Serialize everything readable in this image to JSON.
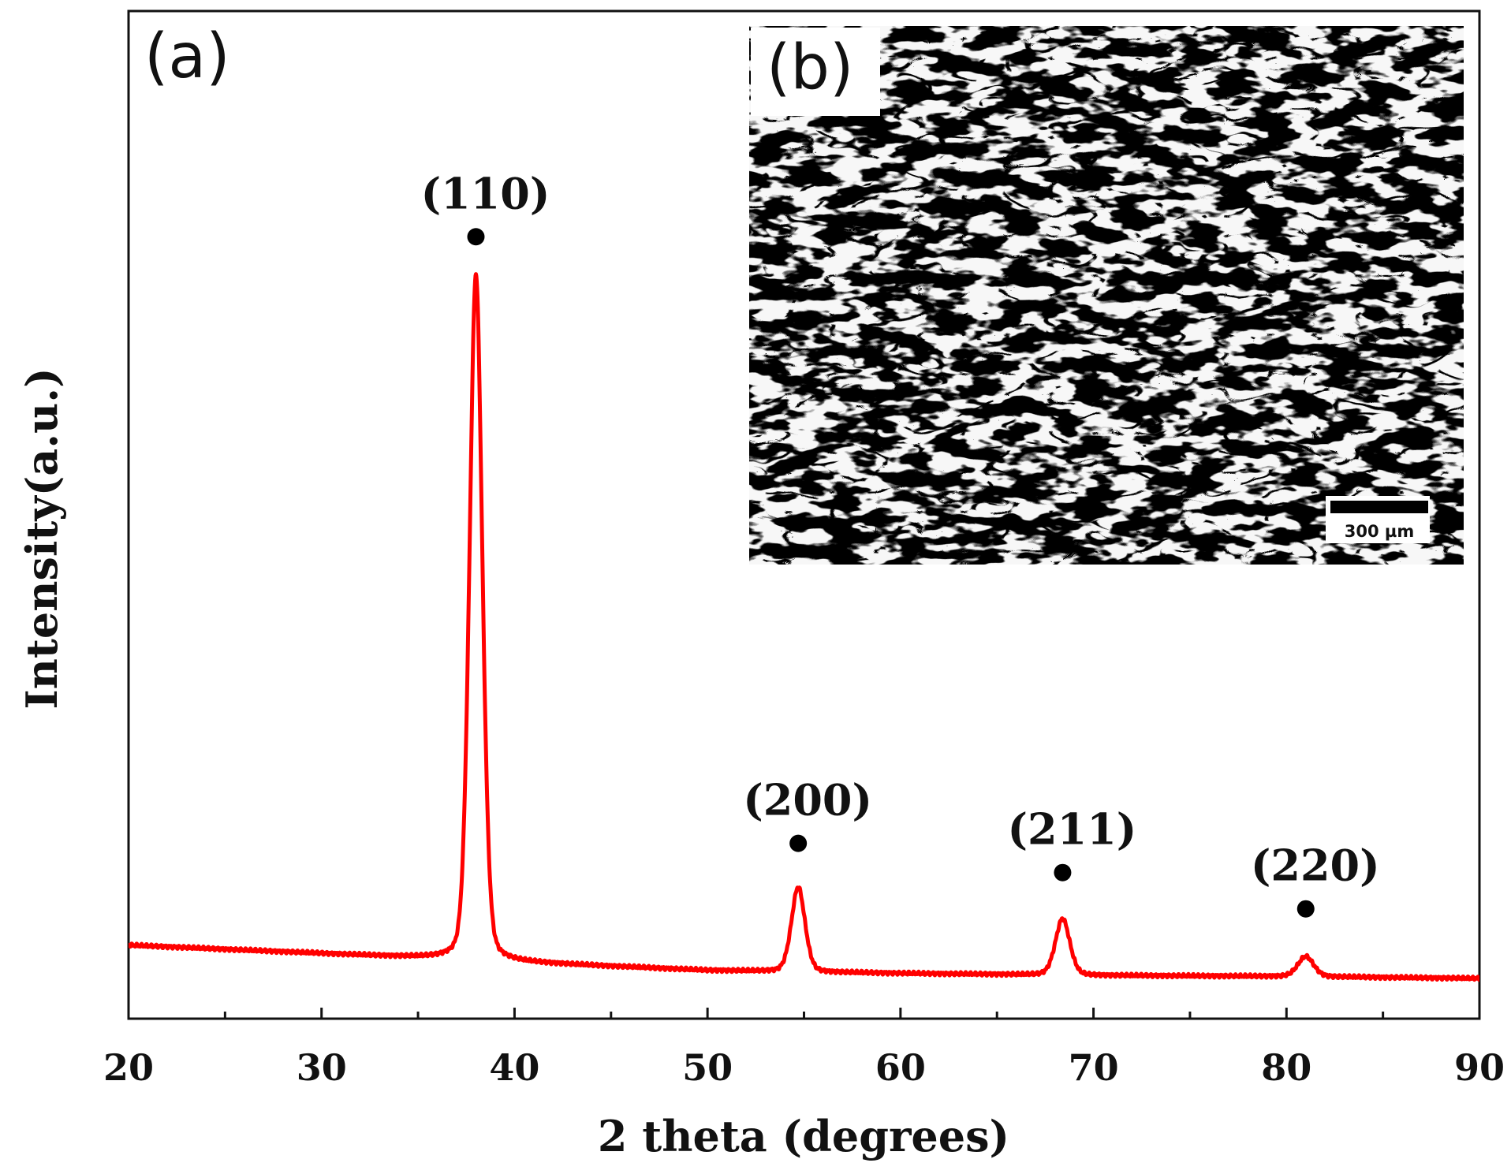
{
  "chart_data": {
    "type": "line",
    "title": "",
    "xlabel": "2 theta (degrees)",
    "ylabel": "Intensity(a.u.)",
    "xlim": [
      20,
      90
    ],
    "ylim": [
      0,
      100
    ],
    "x_ticks": [
      20,
      30,
      40,
      50,
      60,
      70,
      80,
      90
    ],
    "x_tick_labels": [
      "20",
      "30",
      "40",
      "50",
      "60",
      "70",
      "80",
      "90"
    ],
    "y_ticks_shown": false,
    "grid": false,
    "legend": "none",
    "series": [
      {
        "color": "#ff0000",
        "baseline": [
          [
            20,
            7.3
          ],
          [
            37,
            5.9
          ],
          [
            40,
            5.6
          ],
          [
            50,
            4.8
          ],
          [
            60,
            4.5
          ],
          [
            70,
            4.3
          ],
          [
            80,
            4.2
          ],
          [
            90,
            4.0
          ]
        ],
        "peaks": [
          {
            "x": 38.0,
            "height": 68.1,
            "width": 0.34
          },
          {
            "x": 54.7,
            "height": 8.4,
            "width": 0.36
          },
          {
            "x": 68.4,
            "height": 5.6,
            "width": 0.38
          },
          {
            "x": 81.0,
            "height": 2.0,
            "width": 0.42
          }
        ]
      }
    ],
    "annotations": [
      {
        "text": "(110)",
        "x": 38.0,
        "marker_y": 77.6
      },
      {
        "text": "(200)",
        "x": 54.7,
        "marker_y": 17.4
      },
      {
        "text": "(211)",
        "x": 68.4,
        "marker_y": 14.5
      },
      {
        "text": "(220)",
        "x": 81.0,
        "marker_y": 10.9
      }
    ],
    "marker_color": "#000000"
  },
  "panels": {
    "a_label": "(a)",
    "b_label": "(b)"
  },
  "inset": {
    "description_icon": "micrograph-image",
    "scale_bar_label": "300 µm"
  }
}
